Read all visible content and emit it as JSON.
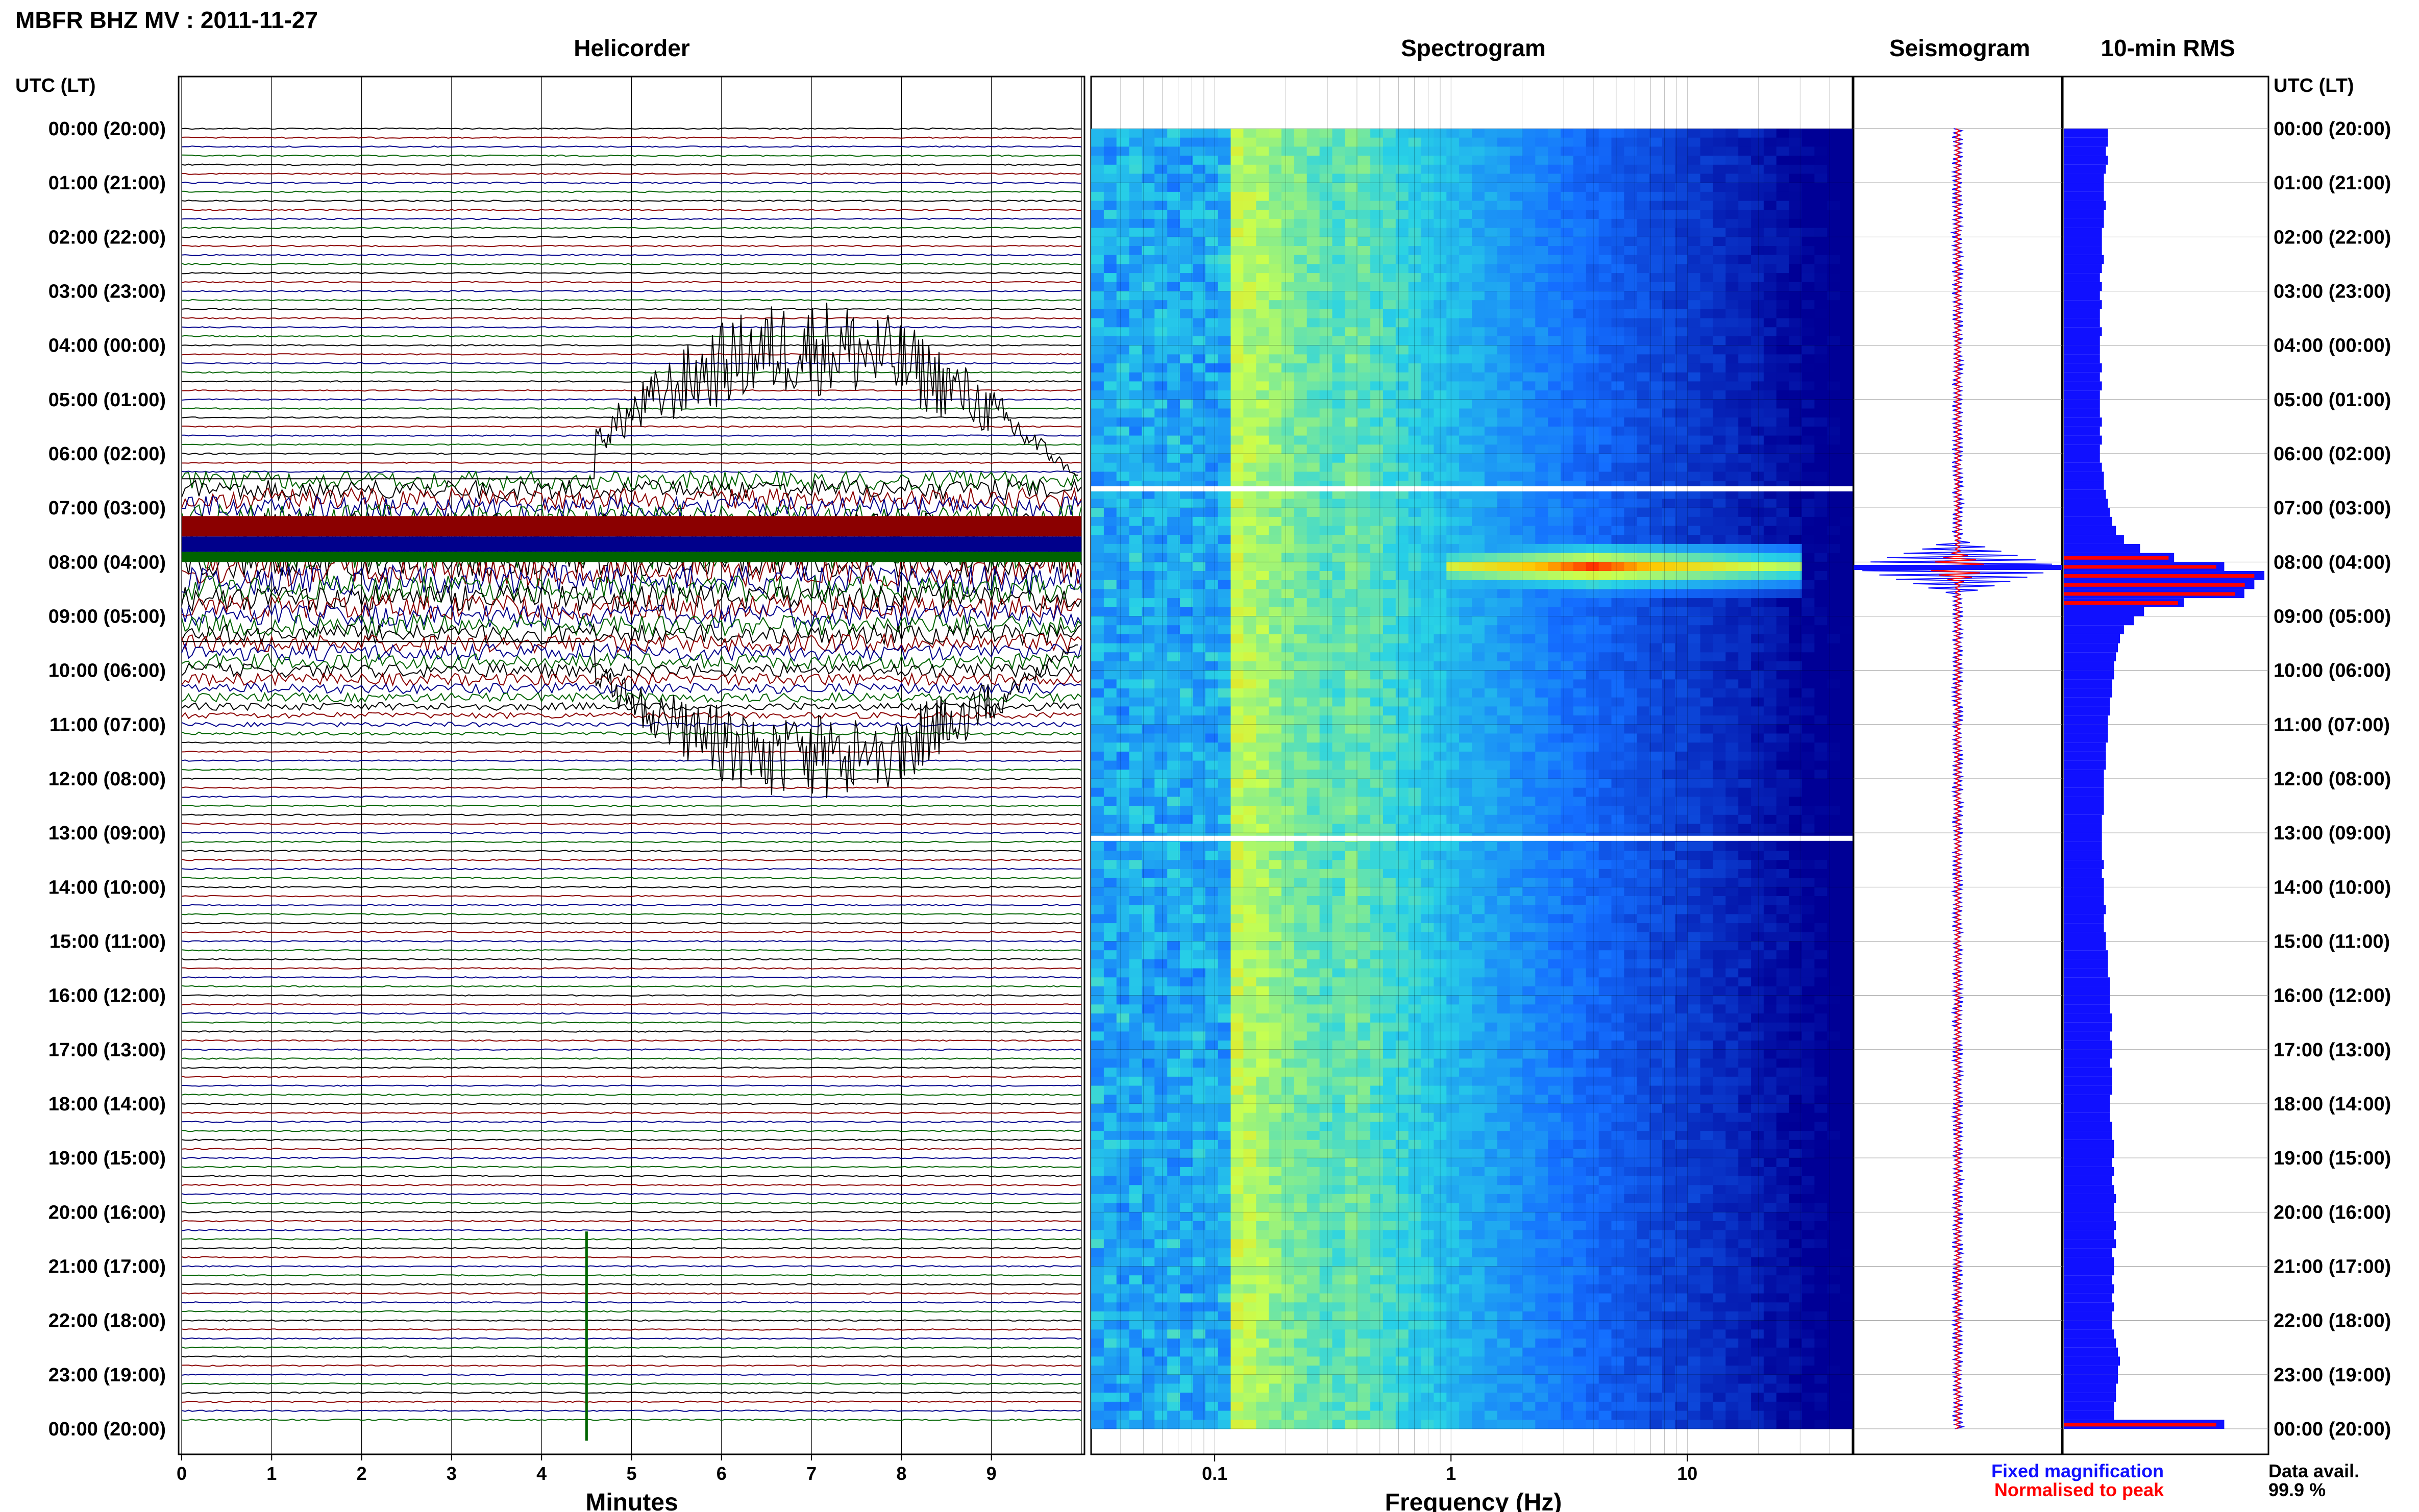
{
  "title": "MBFR BHZ MV : 2011-11-27",
  "utc_header_left": "UTC (LT)",
  "utc_header_right": "UTC (LT)",
  "panels": {
    "helicorder_title": "Helicorder",
    "spectrogram_title": "Spectrogram",
    "seismogram_title": "Seismogram",
    "rms_title": "10-min RMS"
  },
  "time_labels": [
    "00:00 (20:00)",
    "01:00 (21:00)",
    "02:00 (22:00)",
    "03:00 (23:00)",
    "04:00 (00:00)",
    "05:00 (01:00)",
    "06:00 (02:00)",
    "07:00 (03:00)",
    "08:00 (04:00)",
    "09:00 (05:00)",
    "10:00 (06:00)",
    "11:00 (07:00)",
    "12:00 (08:00)",
    "13:00 (09:00)",
    "14:00 (10:00)",
    "15:00 (11:00)",
    "16:00 (12:00)",
    "17:00 (13:00)",
    "18:00 (14:00)",
    "19:00 (15:00)",
    "20:00 (16:00)",
    "21:00 (17:00)",
    "22:00 (18:00)",
    "23:00 (19:00)",
    "00:00 (20:00)"
  ],
  "legend": {
    "fixed": "Fixed magnification",
    "normalised": "Normalised to peak",
    "fixed_color": "#1010ff",
    "normalised_color": "#ff0000"
  },
  "data_avail_label": "Data avail.",
  "data_avail_value": "99.9 %",
  "colors": {
    "trace_cycle": [
      "#000000",
      "#8b0000",
      "#00008b",
      "#006400"
    ],
    "spectro_low": "#0000a0",
    "spectro_mid": "#30c0ff",
    "spectro_high": "#ffff40",
    "spectro_peak": "#ff0000"
  },
  "chart_data": [
    {
      "type": "line",
      "name": "helicorder",
      "title": "Helicorder",
      "xlabel": "Minutes",
      "x_ticks": [
        "0",
        "1",
        "2",
        "3",
        "4",
        "5",
        "6",
        "7",
        "8",
        "9"
      ],
      "xlim": [
        0,
        10
      ],
      "rows": 144,
      "rows_per_hour": 6,
      "events": [
        {
          "label": "high-amplitude tremor",
          "hour_start": 6.4,
          "hour_end": 11.3,
          "peak_hour": 8.0
        },
        {
          "label": "low-amplitude bursts",
          "hour_start": 6.5,
          "hour_end": 10.2
        },
        {
          "label": "transient",
          "hour": 22.9,
          "minute": 4.5
        }
      ]
    },
    {
      "type": "heatmap",
      "name": "spectrogram",
      "title": "Spectrogram",
      "xlabel": "Frequency (Hz)",
      "x_scale": "log",
      "x_ticks": [
        "0.1",
        "1",
        "10"
      ],
      "xlim": [
        0.03,
        50
      ],
      "gaps_hours": [
        6.65,
        13.1
      ],
      "hotspot": {
        "freq_range_hz": [
          1.0,
          30
        ],
        "hour": 8.1
      }
    },
    {
      "type": "line",
      "name": "seismogram",
      "title": "Seismogram",
      "series": [
        {
          "name": "Fixed magnification"
        },
        {
          "name": "Normalised to peak"
        }
      ],
      "peak_hour": 8.1
    },
    {
      "type": "bar",
      "name": "rms",
      "title": "10-min RMS",
      "orientation": "horizontal",
      "bins_per_hour": 6,
      "series": [
        {
          "name": "Fixed magnification"
        },
        {
          "name": "Normalised to peak"
        }
      ],
      "values": [
        0.22,
        0.22,
        0.21,
        0.22,
        0.21,
        0.2,
        0.2,
        0.2,
        0.21,
        0.2,
        0.2,
        0.19,
        0.19,
        0.19,
        0.2,
        0.19,
        0.18,
        0.19,
        0.18,
        0.19,
        0.18,
        0.18,
        0.19,
        0.18,
        0.18,
        0.18,
        0.19,
        0.18,
        0.19,
        0.18,
        0.18,
        0.18,
        0.19,
        0.18,
        0.19,
        0.18,
        0.18,
        0.19,
        0.2,
        0.2,
        0.21,
        0.22,
        0.23,
        0.24,
        0.26,
        0.3,
        0.38,
        0.55,
        0.8,
        1.0,
        0.95,
        0.9,
        0.6,
        0.4,
        0.35,
        0.3,
        0.28,
        0.27,
        0.26,
        0.25,
        0.25,
        0.24,
        0.24,
        0.23,
        0.23,
        0.22,
        0.22,
        0.22,
        0.21,
        0.21,
        0.21,
        0.2,
        0.2,
        0.2,
        0.2,
        0.2,
        0.19,
        0.19,
        0.19,
        0.19,
        0.19,
        0.2,
        0.19,
        0.2,
        0.2,
        0.2,
        0.21,
        0.2,
        0.2,
        0.21,
        0.21,
        0.22,
        0.22,
        0.22,
        0.23,
        0.23,
        0.23,
        0.23,
        0.24,
        0.24,
        0.23,
        0.24,
        0.24,
        0.23,
        0.24,
        0.24,
        0.24,
        0.23,
        0.23,
        0.23,
        0.24,
        0.24,
        0.25,
        0.25,
        0.24,
        0.25,
        0.24,
        0.25,
        0.26,
        0.25,
        0.25,
        0.26,
        0.25,
        0.26,
        0.24,
        0.25,
        0.25,
        0.24,
        0.25,
        0.24,
        0.25,
        0.24,
        0.24,
        0.25,
        0.26,
        0.27,
        0.28,
        0.27,
        0.27,
        0.26,
        0.26,
        0.25,
        0.25,
        0.8
      ]
    }
  ]
}
